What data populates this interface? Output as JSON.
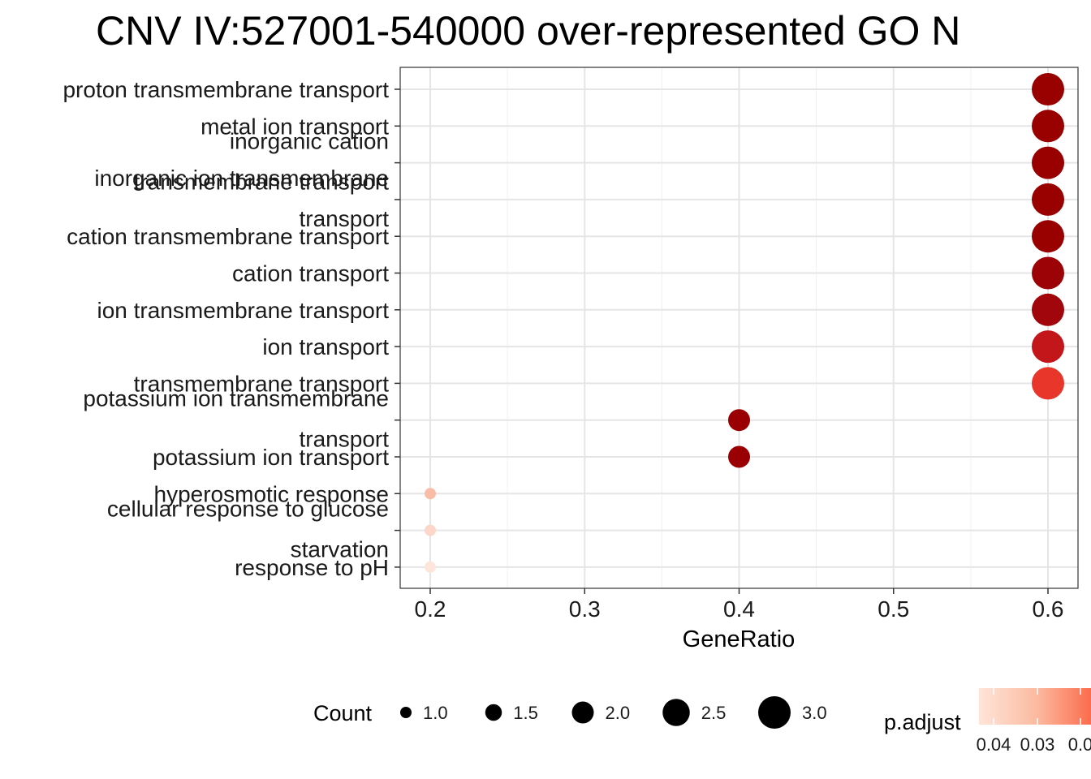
{
  "chart_data": {
    "type": "scatter",
    "title": "CNV IV:527001-540000 over-represented GO N",
    "xlabel": "GeneRatio",
    "ylabel": "",
    "xlim": [
      0.18,
      0.62
    ],
    "xticks": [
      "0.2",
      "0.3",
      "0.4",
      "0.5",
      "0.6"
    ],
    "xtick_values": [
      0.2,
      0.3,
      0.4,
      0.5,
      0.6
    ],
    "grid": true,
    "legend_position": "bottom",
    "points": [
      {
        "term": [
          "proton transmembrane transport"
        ],
        "gene_ratio": 0.6,
        "count": 3,
        "p_adjust": 0.003,
        "color": "#990000"
      },
      {
        "term": [
          "metal ion transport"
        ],
        "gene_ratio": 0.6,
        "count": 3,
        "p_adjust": 0.003,
        "color": "#990000"
      },
      {
        "term": [
          "inorganic cation",
          "transmembrane transport"
        ],
        "gene_ratio": 0.6,
        "count": 3,
        "p_adjust": 0.003,
        "color": "#990000"
      },
      {
        "term": [
          "inorganic ion transmembrane",
          "transport"
        ],
        "gene_ratio": 0.6,
        "count": 3,
        "p_adjust": 0.003,
        "color": "#990000"
      },
      {
        "term": [
          "cation transmembrane transport"
        ],
        "gene_ratio": 0.6,
        "count": 3,
        "p_adjust": 0.003,
        "color": "#990000"
      },
      {
        "term": [
          "cation transport"
        ],
        "gene_ratio": 0.6,
        "count": 3,
        "p_adjust": 0.004,
        "color": "#9b0306"
      },
      {
        "term": [
          "ion transmembrane transport"
        ],
        "gene_ratio": 0.6,
        "count": 3,
        "p_adjust": 0.005,
        "color": "#a0060b"
      },
      {
        "term": [
          "ion transport"
        ],
        "gene_ratio": 0.6,
        "count": 3,
        "p_adjust": 0.008,
        "color": "#c2161b"
      },
      {
        "term": [
          "transmembrane transport"
        ],
        "gene_ratio": 0.6,
        "count": 3,
        "p_adjust": 0.012,
        "color": "#e8362b"
      },
      {
        "term": [
          "potassium ion transmembrane",
          "transport"
        ],
        "gene_ratio": 0.4,
        "count": 2,
        "p_adjust": 0.004,
        "color": "#9a0003"
      },
      {
        "term": [
          "potassium ion transport"
        ],
        "gene_ratio": 0.4,
        "count": 2,
        "p_adjust": 0.004,
        "color": "#9a0003"
      },
      {
        "term": [
          "hyperosmotic response"
        ],
        "gene_ratio": 0.2,
        "count": 1,
        "p_adjust": 0.04,
        "color": "#f9bda7"
      },
      {
        "term": [
          "cellular response to glucose",
          "starvation"
        ],
        "gene_ratio": 0.2,
        "count": 1,
        "p_adjust": 0.045,
        "color": "#fcd6c8"
      },
      {
        "term": [
          "response to pH"
        ],
        "gene_ratio": 0.2,
        "count": 1,
        "p_adjust": 0.048,
        "color": "#fde5dc"
      }
    ],
    "legend_count": {
      "title": "Count",
      "items": [
        {
          "label": "1.0",
          "value": 1.0
        },
        {
          "label": "1.5",
          "value": 1.5
        },
        {
          "label": "2.0",
          "value": 2.0
        },
        {
          "label": "2.5",
          "value": 2.5
        },
        {
          "label": "3.0",
          "value": 3.0
        }
      ]
    },
    "legend_color": {
      "title": "p.adjust",
      "labels": [
        "0.04",
        "0.03",
        "0.0"
      ],
      "colors": [
        "#fee5d9",
        "#fcbba1",
        "#fb6a4a"
      ]
    }
  }
}
